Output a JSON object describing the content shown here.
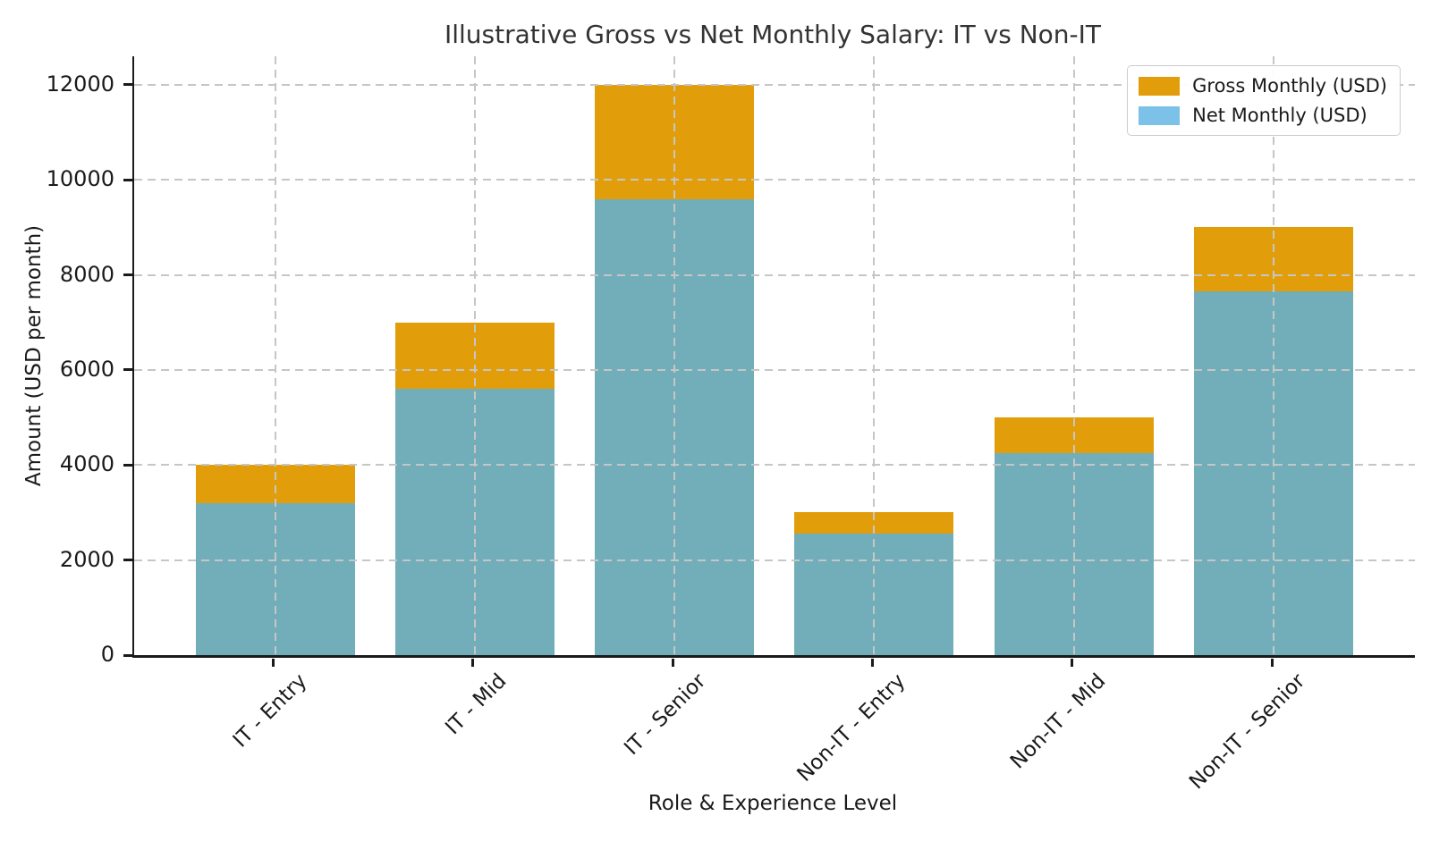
{
  "chart_data": {
    "type": "bar",
    "variant": "overlay",
    "title": "Illustrative Gross vs Net Monthly Salary: IT vs Non-IT",
    "xlabel": "Role & Experience Level",
    "ylabel": "Amount (USD per month)",
    "categories": [
      "IT - Entry",
      "IT - Mid",
      "IT - Senior",
      "Non-IT - Entry",
      "Non-IT - Mid",
      "Non-IT - Senior"
    ],
    "series": [
      {
        "name": "Gross Monthly (USD)",
        "values": [
          4000,
          7000,
          12000,
          3000,
          5000,
          9000
        ],
        "color": "#E29E0A",
        "legend_color": "#E29E0A"
      },
      {
        "name": "Net Monthly (USD)",
        "values": [
          3200,
          5600,
          9600,
          2550,
          4250,
          7650
        ],
        "color": "#71AEBA",
        "legend_color": "#7CC2E8"
      }
    ],
    "yticks": [
      0,
      2000,
      4000,
      6000,
      8000,
      10000,
      12000
    ],
    "ytick_labels": [
      "0",
      "2000",
      "4000",
      "6000",
      "8000",
      "10000",
      "12000"
    ],
    "ylim": [
      0,
      12600
    ],
    "grid": "dashed",
    "grid_color": "#c6c6c6",
    "legend_position": "upper right",
    "spine_color": "#1a1a1a"
  }
}
